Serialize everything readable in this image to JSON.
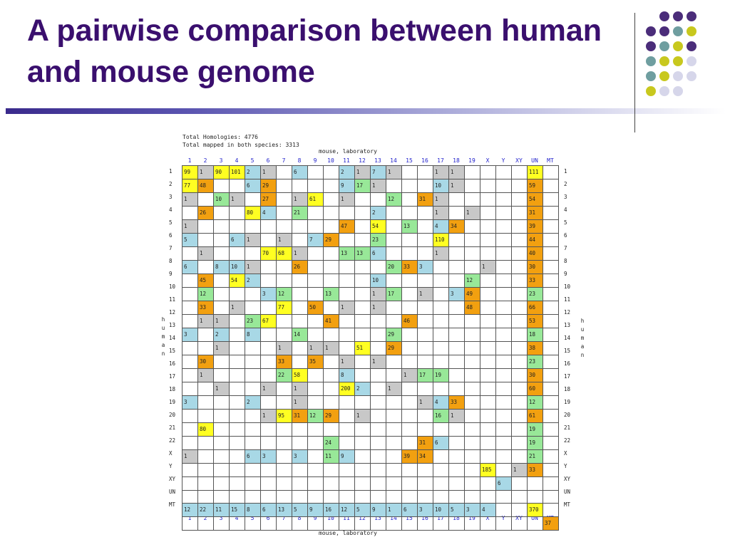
{
  "slide": {
    "title": "A pairwise comparison between human and mouse genome"
  },
  "theme": {
    "title_color": "#3a0f6e",
    "dot_colors": {
      "P": "#4b2d7a",
      "T": "#6f9ea0",
      "Y": "#c8c81e",
      "L": "#d6d6ea"
    },
    "cell_colors": {
      "y": "#ffff22",
      "o": "#f2a010",
      "g": "#98e898",
      "b": "#a8d8e6",
      "s": "#c8c8c8"
    }
  },
  "figure": {
    "header_line1": "Total Homologies:  4776",
    "header_line2": "Total mapped in both species: 3313",
    "x_axis_title_top": "mouse, laboratory",
    "x_axis_title_bottom": "mouse, laboratory",
    "y_axis_title_left": [
      "h",
      "u",
      "m",
      "a",
      "n"
    ],
    "y_axis_title_right": [
      "h",
      "u",
      "m",
      "a",
      "n"
    ],
    "columns": [
      "1",
      "2",
      "3",
      "4",
      "5",
      "6",
      "7",
      "8",
      "9",
      "10",
      "11",
      "12",
      "13",
      "14",
      "15",
      "16",
      "17",
      "18",
      "19",
      "X",
      "Y",
      "XY",
      "UN",
      "MT"
    ],
    "rows": [
      "1",
      "2",
      "3",
      "4",
      "5",
      "6",
      "7",
      "8",
      "9",
      "10",
      "11",
      "12",
      "13",
      "14",
      "15",
      "16",
      "17",
      "18",
      "19",
      "20",
      "21",
      "22",
      "X",
      "Y",
      "XY",
      "UN",
      "MT"
    ],
    "matrix": [
      [
        {
          "c": 0,
          "v": "99",
          "k": "y"
        },
        {
          "c": 1,
          "v": "1",
          "k": "s"
        },
        {
          "c": 2,
          "v": "90",
          "k": "y"
        },
        {
          "c": 3,
          "v": "101",
          "k": "y"
        },
        {
          "c": 4,
          "v": "2",
          "k": "b"
        },
        {
          "c": 5,
          "v": "1",
          "k": "s"
        },
        {
          "c": 7,
          "v": "6",
          "k": "b"
        },
        {
          "c": 10,
          "v": "2",
          "k": "b"
        },
        {
          "c": 11,
          "v": "1",
          "k": "s"
        },
        {
          "c": 12,
          "v": "7",
          "k": "b"
        },
        {
          "c": 13,
          "v": "1",
          "k": "s"
        },
        {
          "c": 16,
          "v": "1",
          "k": "s"
        },
        {
          "c": 17,
          "v": "1",
          "k": "s"
        },
        {
          "c": 22,
          "v": "111",
          "k": "y"
        }
      ],
      [
        {
          "c": 0,
          "v": "77",
          "k": "y"
        },
        {
          "c": 1,
          "v": "48",
          "k": "o"
        },
        {
          "c": 4,
          "v": "6",
          "k": "b"
        },
        {
          "c": 5,
          "v": "29",
          "k": "o"
        },
        {
          "c": 10,
          "v": "9",
          "k": "b"
        },
        {
          "c": 11,
          "v": "17",
          "k": "g"
        },
        {
          "c": 12,
          "v": "1",
          "k": "s"
        },
        {
          "c": 16,
          "v": "10",
          "k": "b"
        },
        {
          "c": 17,
          "v": "1",
          "k": "s"
        },
        {
          "c": 22,
          "v": "59",
          "k": "o"
        }
      ],
      [
        {
          "c": 0,
          "v": "1",
          "k": "s"
        },
        {
          "c": 2,
          "v": "10",
          "k": "g"
        },
        {
          "c": 3,
          "v": "1",
          "k": "s"
        },
        {
          "c": 5,
          "v": "27",
          "k": "o"
        },
        {
          "c": 7,
          "v": "1",
          "k": "s"
        },
        {
          "c": 8,
          "v": "61",
          "k": "y"
        },
        {
          "c": 10,
          "v": "1",
          "k": "s"
        },
        {
          "c": 13,
          "v": "12",
          "k": "g"
        },
        {
          "c": 15,
          "v": "31",
          "k": "o"
        },
        {
          "c": 16,
          "v": "1",
          "k": "s"
        },
        {
          "c": 22,
          "v": "54",
          "k": "o"
        }
      ],
      [
        {
          "c": 1,
          "v": "26",
          "k": "o"
        },
        {
          "c": 4,
          "v": "80",
          "k": "y"
        },
        {
          "c": 5,
          "v": "4",
          "k": "b"
        },
        {
          "c": 7,
          "v": "21",
          "k": "g"
        },
        {
          "c": 12,
          "v": "2",
          "k": "b"
        },
        {
          "c": 16,
          "v": "1",
          "k": "s"
        },
        {
          "c": 18,
          "v": "1",
          "k": "s"
        },
        {
          "c": 22,
          "v": "31",
          "k": "o"
        }
      ],
      [
        {
          "c": 0,
          "v": "1",
          "k": "s"
        },
        {
          "c": 10,
          "v": "47",
          "k": "o"
        },
        {
          "c": 12,
          "v": "54",
          "k": "y"
        },
        {
          "c": 14,
          "v": "13",
          "k": "g"
        },
        {
          "c": 16,
          "v": "4",
          "k": "b"
        },
        {
          "c": 17,
          "v": "34",
          "k": "o"
        },
        {
          "c": 22,
          "v": "39",
          "k": "o"
        }
      ],
      [
        {
          "c": 0,
          "v": "5",
          "k": "b"
        },
        {
          "c": 3,
          "v": "6",
          "k": "b"
        },
        {
          "c": 4,
          "v": "1",
          "k": "s"
        },
        {
          "c": 6,
          "v": "1",
          "k": "s"
        },
        {
          "c": 8,
          "v": "7",
          "k": "b"
        },
        {
          "c": 9,
          "v": "29",
          "k": "o"
        },
        {
          "c": 12,
          "v": "23",
          "k": "g"
        },
        {
          "c": 16,
          "v": "110",
          "k": "y"
        },
        {
          "c": 22,
          "v": "44",
          "k": "o"
        }
      ],
      [
        {
          "c": 1,
          "v": "1",
          "k": "s"
        },
        {
          "c": 5,
          "v": "70",
          "k": "y"
        },
        {
          "c": 6,
          "v": "68",
          "k": "y"
        },
        {
          "c": 7,
          "v": "1",
          "k": "s"
        },
        {
          "c": 10,
          "v": "13",
          "k": "g"
        },
        {
          "c": 11,
          "v": "13",
          "k": "g"
        },
        {
          "c": 12,
          "v": "6",
          "k": "b"
        },
        {
          "c": 16,
          "v": "1",
          "k": "s"
        },
        {
          "c": 22,
          "v": "40",
          "k": "o"
        }
      ],
      [
        {
          "c": 0,
          "v": "6",
          "k": "b"
        },
        {
          "c": 2,
          "v": "8",
          "k": "b"
        },
        {
          "c": 3,
          "v": "10",
          "k": "b"
        },
        {
          "c": 4,
          "v": "1",
          "k": "s"
        },
        {
          "c": 7,
          "v": "26",
          "k": "o"
        },
        {
          "c": 13,
          "v": "20",
          "k": "g"
        },
        {
          "c": 14,
          "v": "33",
          "k": "o"
        },
        {
          "c": 15,
          "v": "3",
          "k": "b"
        },
        {
          "c": 19,
          "v": "1",
          "k": "s"
        },
        {
          "c": 22,
          "v": "30",
          "k": "o"
        }
      ],
      [
        {
          "c": 1,
          "v": "45",
          "k": "o"
        },
        {
          "c": 3,
          "v": "54",
          "k": "y"
        },
        {
          "c": 4,
          "v": "2",
          "k": "b"
        },
        {
          "c": 12,
          "v": "10",
          "k": "b"
        },
        {
          "c": 18,
          "v": "12",
          "k": "g"
        },
        {
          "c": 22,
          "v": "33",
          "k": "o"
        }
      ],
      [
        {
          "c": 1,
          "v": "12",
          "k": "g"
        },
        {
          "c": 5,
          "v": "3",
          "k": "b"
        },
        {
          "c": 6,
          "v": "12",
          "k": "g"
        },
        {
          "c": 9,
          "v": "13",
          "k": "g"
        },
        {
          "c": 12,
          "v": "1",
          "k": "s"
        },
        {
          "c": 13,
          "v": "17",
          "k": "g"
        },
        {
          "c": 15,
          "v": "1",
          "k": "s"
        },
        {
          "c": 17,
          "v": "3",
          "k": "b"
        },
        {
          "c": 18,
          "v": "49",
          "k": "o"
        },
        {
          "c": 22,
          "v": "23",
          "k": "g"
        }
      ],
      [
        {
          "c": 1,
          "v": "33",
          "k": "o"
        },
        {
          "c": 3,
          "v": "1",
          "k": "s"
        },
        {
          "c": 6,
          "v": "77",
          "k": "y"
        },
        {
          "c": 8,
          "v": "50",
          "k": "o"
        },
        {
          "c": 10,
          "v": "1",
          "k": "s"
        },
        {
          "c": 12,
          "v": "1",
          "k": "s"
        },
        {
          "c": 18,
          "v": "48",
          "k": "o"
        },
        {
          "c": 22,
          "v": "66",
          "k": "o"
        }
      ],
      [
        {
          "c": 1,
          "v": "1",
          "k": "s"
        },
        {
          "c": 2,
          "v": "1",
          "k": "s"
        },
        {
          "c": 4,
          "v": "23",
          "k": "g"
        },
        {
          "c": 5,
          "v": "67",
          "k": "y"
        },
        {
          "c": 9,
          "v": "41",
          "k": "o"
        },
        {
          "c": 14,
          "v": "46",
          "k": "o"
        },
        {
          "c": 22,
          "v": "53",
          "k": "o"
        }
      ],
      [
        {
          "c": 0,
          "v": "3",
          "k": "b"
        },
        {
          "c": 2,
          "v": "2",
          "k": "b"
        },
        {
          "c": 4,
          "v": "8",
          "k": "b"
        },
        {
          "c": 7,
          "v": "14",
          "k": "g"
        },
        {
          "c": 13,
          "v": "29",
          "k": "g"
        },
        {
          "c": 22,
          "v": "18",
          "k": "g"
        }
      ],
      [
        {
          "c": 2,
          "v": "1",
          "k": "s"
        },
        {
          "c": 6,
          "v": "1",
          "k": "s"
        },
        {
          "c": 8,
          "v": "1",
          "k": "s"
        },
        {
          "c": 9,
          "v": "1",
          "k": "s"
        },
        {
          "c": 11,
          "v": "51",
          "k": "y"
        },
        {
          "c": 13,
          "v": "29",
          "k": "o"
        },
        {
          "c": 22,
          "v": "38",
          "k": "o"
        }
      ],
      [
        {
          "c": 1,
          "v": "30",
          "k": "o"
        },
        {
          "c": 6,
          "v": "33",
          "k": "o"
        },
        {
          "c": 8,
          "v": "35",
          "k": "o"
        },
        {
          "c": 10,
          "v": "1",
          "k": "s"
        },
        {
          "c": 12,
          "v": "1",
          "k": "s"
        },
        {
          "c": 22,
          "v": "23",
          "k": "g"
        }
      ],
      [
        {
          "c": 1,
          "v": "1",
          "k": "s"
        },
        {
          "c": 6,
          "v": "22",
          "k": "g"
        },
        {
          "c": 7,
          "v": "58",
          "k": "y"
        },
        {
          "c": 10,
          "v": "8",
          "k": "b"
        },
        {
          "c": 14,
          "v": "1",
          "k": "s"
        },
        {
          "c": 15,
          "v": "17",
          "k": "g"
        },
        {
          "c": 16,
          "v": "19",
          "k": "g"
        },
        {
          "c": 22,
          "v": "30",
          "k": "o"
        }
      ],
      [
        {
          "c": 2,
          "v": "1",
          "k": "s"
        },
        {
          "c": 5,
          "v": "1",
          "k": "s"
        },
        {
          "c": 7,
          "v": "1",
          "k": "s"
        },
        {
          "c": 10,
          "v": "200",
          "k": "y"
        },
        {
          "c": 11,
          "v": "2",
          "k": "b"
        },
        {
          "c": 13,
          "v": "1",
          "k": "s"
        },
        {
          "c": 22,
          "v": "60",
          "k": "o"
        }
      ],
      [
        {
          "c": 0,
          "v": "3",
          "k": "b"
        },
        {
          "c": 4,
          "v": "2",
          "k": "b"
        },
        {
          "c": 7,
          "v": "1",
          "k": "s"
        },
        {
          "c": 15,
          "v": "1",
          "k": "s"
        },
        {
          "c": 16,
          "v": "4",
          "k": "b"
        },
        {
          "c": 17,
          "v": "33",
          "k": "o"
        },
        {
          "c": 22,
          "v": "12",
          "k": "g"
        }
      ],
      [
        {
          "c": 5,
          "v": "1",
          "k": "s"
        },
        {
          "c": 6,
          "v": "95",
          "k": "y"
        },
        {
          "c": 7,
          "v": "31",
          "k": "o"
        },
        {
          "c": 8,
          "v": "12",
          "k": "g"
        },
        {
          "c": 9,
          "v": "29",
          "k": "o"
        },
        {
          "c": 11,
          "v": "1",
          "k": "s"
        },
        {
          "c": 16,
          "v": "16",
          "k": "g"
        },
        {
          "c": 17,
          "v": "1",
          "k": "s"
        },
        {
          "c": 22,
          "v": "61",
          "k": "o"
        }
      ],
      [
        {
          "c": 1,
          "v": "80",
          "k": "y"
        },
        {
          "c": 22,
          "v": "19",
          "k": "g"
        }
      ],
      [
        {
          "c": 9,
          "v": "24",
          "k": "g"
        },
        {
          "c": 15,
          "v": "31",
          "k": "o"
        },
        {
          "c": 16,
          "v": "6",
          "k": "b"
        },
        {
          "c": 22,
          "v": "19",
          "k": "g"
        }
      ],
      [
        {
          "c": 0,
          "v": "1",
          "k": "s"
        },
        {
          "c": 4,
          "v": "6",
          "k": "b"
        },
        {
          "c": 5,
          "v": "3",
          "k": "b"
        },
        {
          "c": 7,
          "v": "3",
          "k": "b"
        },
        {
          "c": 9,
          "v": "11",
          "k": "g"
        },
        {
          "c": 10,
          "v": "9",
          "k": "b"
        },
        {
          "c": 14,
          "v": "39",
          "k": "o"
        },
        {
          "c": 15,
          "v": "34",
          "k": "o"
        },
        {
          "c": 22,
          "v": "21",
          "k": "g"
        }
      ],
      [
        {
          "c": 19,
          "v": "185",
          "k": "y"
        },
        {
          "c": 21,
          "v": "1",
          "k": "s"
        },
        {
          "c": 22,
          "v": "33",
          "k": "o"
        }
      ],
      [
        {
          "c": 20,
          "v": "6",
          "k": "b"
        }
      ],
      [],
      [
        {
          "c": 0,
          "v": "12",
          "k": "b"
        },
        {
          "c": 1,
          "v": "22",
          "k": "b"
        },
        {
          "c": 2,
          "v": "11",
          "k": "b"
        },
        {
          "c": 3,
          "v": "15",
          "k": "b"
        },
        {
          "c": 4,
          "v": "8",
          "k": "b"
        },
        {
          "c": 5,
          "v": "6",
          "k": "b"
        },
        {
          "c": 6,
          "v": "13",
          "k": "b"
        },
        {
          "c": 7,
          "v": "5",
          "k": "b"
        },
        {
          "c": 8,
          "v": "9",
          "k": "b"
        },
        {
          "c": 9,
          "v": "16",
          "k": "b"
        },
        {
          "c": 10,
          "v": "12",
          "k": "b"
        },
        {
          "c": 11,
          "v": "5",
          "k": "b"
        },
        {
          "c": 12,
          "v": "9",
          "k": "b"
        },
        {
          "c": 13,
          "v": "1",
          "k": "b"
        },
        {
          "c": 14,
          "v": "6",
          "k": "b"
        },
        {
          "c": 15,
          "v": "3",
          "k": "b"
        },
        {
          "c": 16,
          "v": "10",
          "k": "b"
        },
        {
          "c": 17,
          "v": "5",
          "k": "b"
        },
        {
          "c": 18,
          "v": "3",
          "k": "b"
        },
        {
          "c": 19,
          "v": "4",
          "k": "b"
        },
        {
          "c": 22,
          "v": "370",
          "k": "y"
        }
      ],
      [
        {
          "c": 23,
          "v": "37",
          "k": "o"
        }
      ]
    ]
  }
}
